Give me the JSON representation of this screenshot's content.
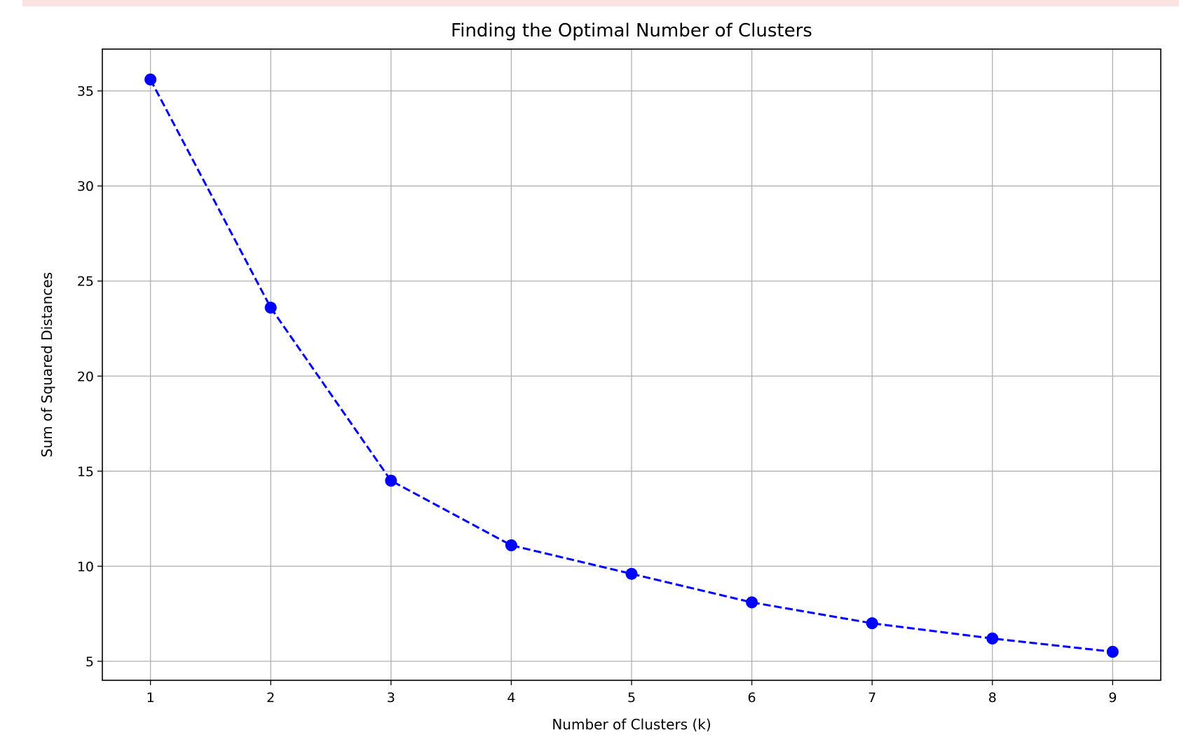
{
  "chart_data": {
    "type": "line",
    "title": "Finding the Optimal Number of Clusters",
    "xlabel": "Number of Clusters (k)",
    "ylabel": "Sum of Squared Distances",
    "x": [
      1,
      2,
      3,
      4,
      5,
      6,
      7,
      8,
      9
    ],
    "series": [
      {
        "values": [
          35.6,
          23.6,
          14.5,
          11.1,
          9.6,
          8.1,
          7.0,
          6.2,
          5.5
        ],
        "color": "#0000ff",
        "line_style": "dashed",
        "marker": "circle"
      }
    ],
    "xticks": [
      1,
      2,
      3,
      4,
      5,
      6,
      7,
      8,
      9
    ],
    "yticks": [
      5,
      10,
      15,
      20,
      25,
      30,
      35
    ],
    "xlim": [
      0.6,
      9.4
    ],
    "ylim": [
      4.0,
      37.2
    ],
    "grid": true,
    "colors": {
      "grid": "#b0b0b0",
      "axes": "#000000",
      "banner": "#fbe3e3"
    }
  }
}
